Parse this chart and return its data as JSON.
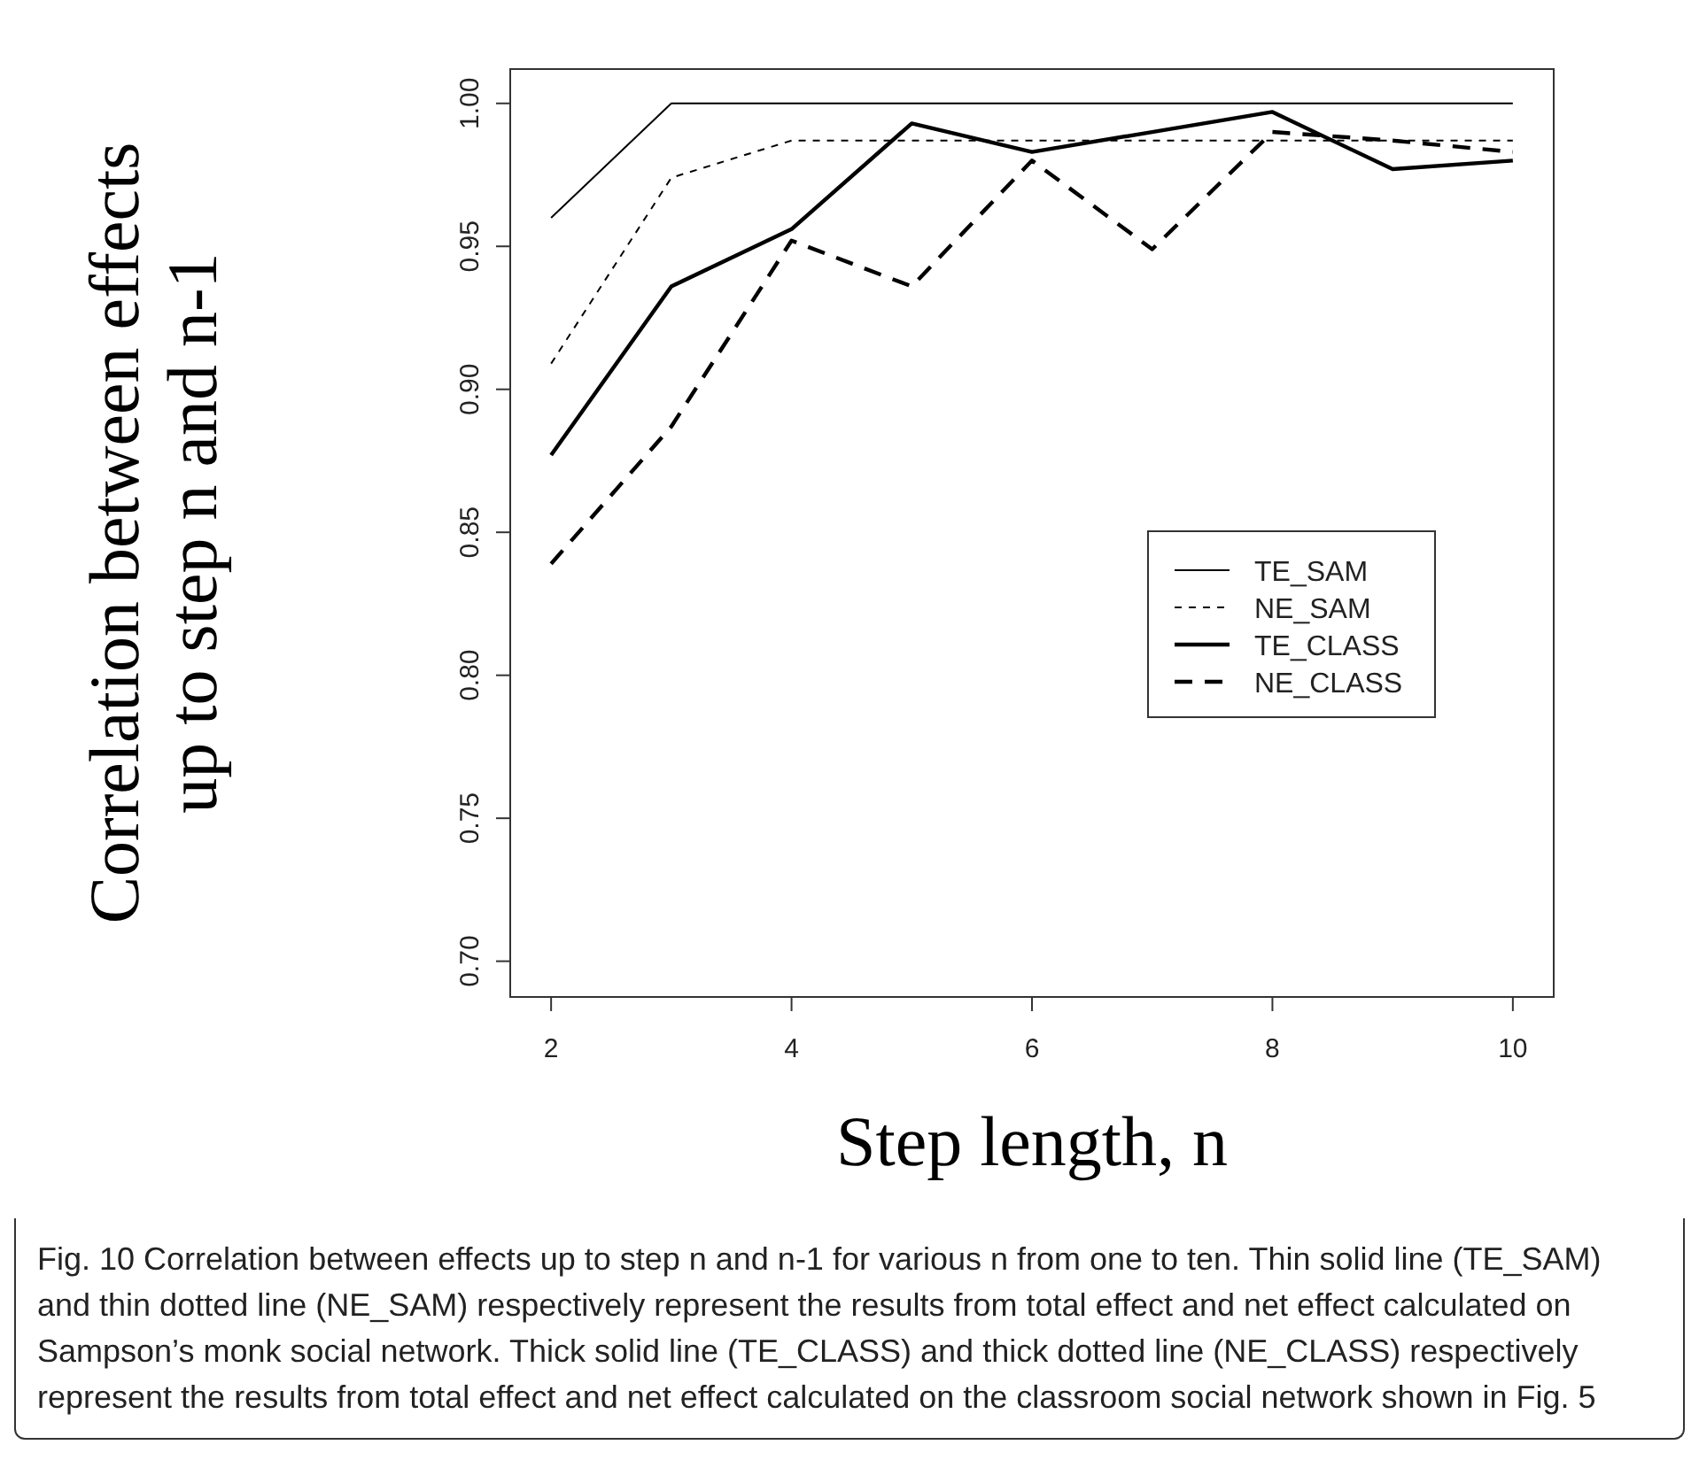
{
  "chart_data": {
    "type": "line",
    "xlabel": "Step length, n",
    "ylabel": "Correlation between effects up to step n and n-1",
    "x": [
      2,
      3,
      4,
      5,
      6,
      7,
      8,
      9,
      10
    ],
    "xlim": [
      1.66,
      10.34
    ],
    "xticks": [
      2,
      4,
      6,
      8,
      10
    ],
    "ylim": [
      0.6875,
      1.012
    ],
    "yticks": [
      {
        "value": 0.7,
        "label": "0.70"
      },
      0.75,
      {
        "value": 0.8,
        "label": "0.80"
      },
      0.85,
      {
        "value": 0.9,
        "label": "0.90"
      },
      0.95,
      {
        "value": 1.0,
        "label": "1.00"
      }
    ],
    "legend": "right",
    "grid": false,
    "series": [
      {
        "name": "TE_SAM",
        "color": "#000000",
        "line_style": "solid",
        "values": [
          0.96,
          1.0,
          1.0,
          1.0,
          1.0,
          1.0,
          1.0,
          1.0,
          1.0
        ]
      },
      {
        "name": "NE_SAM",
        "color": "#000000",
        "line_style": "dotted",
        "values": [
          0.909,
          0.974,
          0.987,
          0.987,
          0.987,
          0.987,
          0.987,
          0.987,
          0.987
        ]
      },
      {
        "name": "TE_CLASS",
        "color": "#000000",
        "line_style": "solid",
        "values": [
          0.877,
          0.936,
          0.956,
          0.993,
          0.983,
          0.99,
          0.997,
          0.977,
          0.98
        ]
      },
      {
        "name": "NE_CLASS",
        "color": "#000000",
        "line_style": "dashed",
        "values": [
          0.839,
          0.887,
          0.952,
          0.936,
          0.98,
          0.949,
          0.99,
          0.987,
          0.983
        ]
      }
    ],
    "annotations": [
      "Fig. 10 Correlation between effects up to step n and n-1 for various n from one to ten. Thin solid line (TE_SAM) and thin dotted line (NE_SAM) respectively represent the results from total effect and net effect calculated on Sampson’s monk social network. Thick solid line (TE_CLASS) and thick dotted line (NE_CLASS) respectively represent the results from total effect and net effect calculated on the classroom social network shown in Fig. 5"
    ]
  }
}
